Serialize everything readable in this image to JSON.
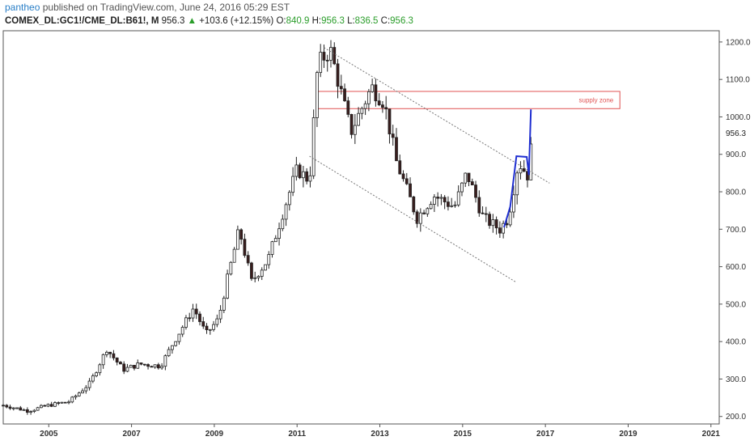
{
  "header": {
    "author": "pantheo",
    "published_text": "published on TradingView.com, June 24, 2016 05:29 EST"
  },
  "quote": {
    "symbol": "COMEX_DL:GC1!/CME_DL:B61!, M",
    "last": "956.3",
    "change": "+103.6 (+12.15%)",
    "o_label": "O:",
    "o_value": "840.9",
    "h_label": "H:",
    "h_value": "956.3",
    "l_label": "L:",
    "l_value": "836.5",
    "c_label": "C:",
    "c_value": "956.3",
    "up_color": "#2a9d2a"
  },
  "annotation": {
    "supply_zone_label": "supply zone",
    "price_marker": "956.3"
  },
  "chart_data": {
    "type": "candlestick",
    "interval": "monthly",
    "x_ticks": [
      "2005",
      "2007",
      "2009",
      "2011",
      "2013",
      "2015",
      "2017",
      "2019",
      "2021"
    ],
    "y_ticks": [
      "200.0",
      "300.0",
      "400.0",
      "500.0",
      "600.0",
      "700.0",
      "800.0",
      "900.0",
      "1000.0",
      "1100.0",
      "1200.0"
    ],
    "ylim": [
      180,
      1230
    ],
    "xlim": [
      2003.9,
      2021.2
    ],
    "supply_zone": {
      "x0": 2011.5,
      "x1": 2018.8,
      "y0": 1022,
      "y1": 1068
    },
    "channel_upper": [
      [
        2011.65,
        1185
      ],
      [
        2017.1,
        823
      ]
    ],
    "channel_lower": [
      [
        2011.3,
        895
      ],
      [
        2016.3,
        558
      ]
    ],
    "blue_path": [
      [
        2016.0,
        705
      ],
      [
        2016.15,
        760
      ],
      [
        2016.3,
        895
      ],
      [
        2016.55,
        893
      ],
      [
        2016.6,
        845
      ],
      [
        2016.65,
        1020
      ]
    ],
    "anchors": [
      [
        2003.9,
        230
      ],
      [
        2004.5,
        215
      ],
      [
        2005.0,
        230
      ],
      [
        2005.5,
        240
      ],
      [
        2006.0,
        290
      ],
      [
        2006.4,
        380
      ],
      [
        2006.8,
        325
      ],
      [
        2007.2,
        340
      ],
      [
        2007.7,
        335
      ],
      [
        2008.0,
        395
      ],
      [
        2008.5,
        490
      ],
      [
        2008.8,
        420
      ],
      [
        2009.1,
        460
      ],
      [
        2009.3,
        560
      ],
      [
        2009.6,
        700
      ],
      [
        2009.9,
        560
      ],
      [
        2010.3,
        620
      ],
      [
        2010.7,
        760
      ],
      [
        2011.0,
        860
      ],
      [
        2011.3,
        830
      ],
      [
        2011.5,
        1140
      ],
      [
        2011.8,
        1180
      ],
      [
        2012.3,
        960
      ],
      [
        2012.8,
        1080
      ],
      [
        2013.1,
        1040
      ],
      [
        2013.4,
        880
      ],
      [
        2013.9,
        730
      ],
      [
        2014.3,
        790
      ],
      [
        2014.8,
        760
      ],
      [
        2015.1,
        850
      ],
      [
        2015.5,
        730
      ],
      [
        2015.9,
        700
      ],
      [
        2016.1,
        730
      ],
      [
        2016.35,
        880
      ],
      [
        2016.6,
        840
      ],
      [
        2016.68,
        956
      ]
    ]
  }
}
